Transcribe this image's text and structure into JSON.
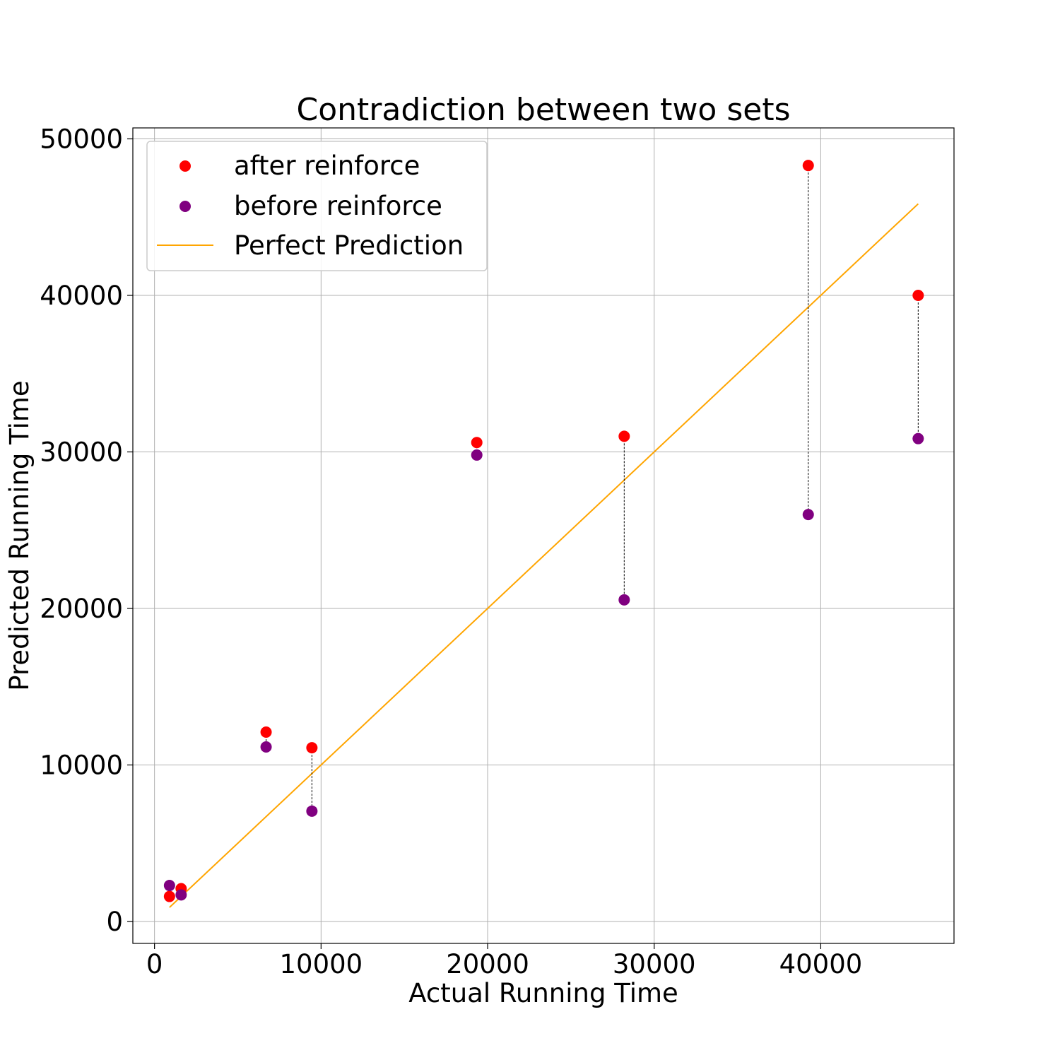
{
  "chart_data": {
    "type": "scatter",
    "title": "Contradiction between two sets",
    "xlabel": "Actual Running Time",
    "ylabel": "Predicted Running Time",
    "xlim": [
      -1300,
      48000
    ],
    "ylim": [
      -1400,
      50700
    ],
    "xticks": [
      0,
      10000,
      20000,
      30000,
      40000
    ],
    "yticks": [
      0,
      10000,
      20000,
      30000,
      40000,
      50000
    ],
    "grid": true,
    "legend_position": "top-left",
    "x": [
      900,
      1600,
      6700,
      9450,
      19350,
      28200,
      39250,
      45850
    ],
    "series": [
      {
        "name": "after reinforce",
        "color": "#ff0000",
        "marker": "circle",
        "values": [
          1600,
          2100,
          12100,
          11100,
          30600,
          31000,
          48300,
          40000
        ]
      },
      {
        "name": "before reinforce",
        "color": "#800080",
        "marker": "circle",
        "values": [
          2300,
          1700,
          11150,
          7050,
          29800,
          20550,
          26000,
          30850
        ]
      }
    ],
    "reference_line": {
      "name": "Perfect Prediction",
      "color": "#ffa500",
      "x": [
        900,
        45850
      ],
      "y": [
        900,
        45850
      ]
    },
    "connector_style": "dashed-black"
  }
}
